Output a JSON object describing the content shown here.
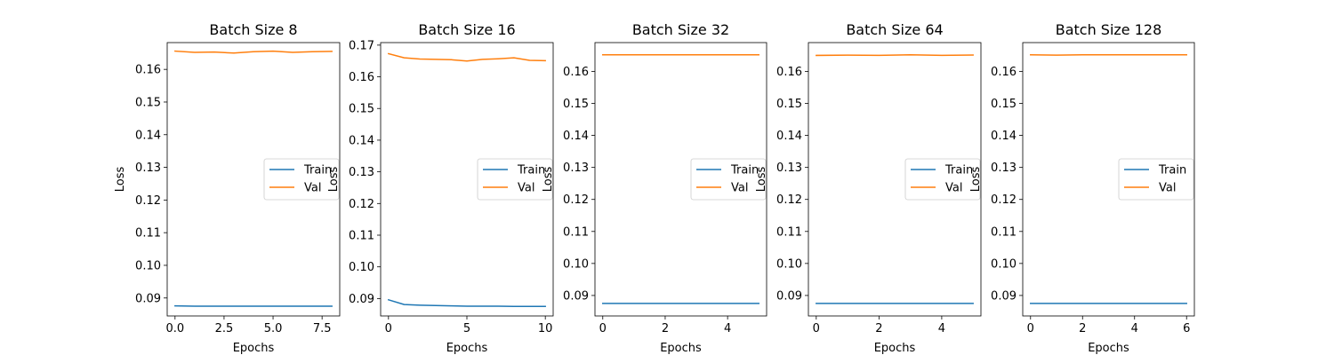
{
  "chart_data": [
    {
      "type": "line",
      "title": "Batch Size 8",
      "xlabel": "Epochs",
      "ylabel": "Loss",
      "xlim": [
        -0.4,
        8.4
      ],
      "ylim": [
        0.0845,
        0.1682
      ],
      "xticks": [
        0,
        2.5,
        5,
        7.5
      ],
      "xtick_labels": [
        "0.0",
        "2.5",
        "5.0",
        "7.5"
      ],
      "yticks": [
        0.09,
        0.1,
        0.11,
        0.12,
        0.13,
        0.14,
        0.15,
        0.16
      ],
      "ytick_labels": [
        "0.09",
        "0.10",
        "0.11",
        "0.12",
        "0.13",
        "0.14",
        "0.15",
        "0.16"
      ],
      "legend": "center-right",
      "series": [
        {
          "name": "Train",
          "color": "#1f77b4",
          "x": [
            0,
            1,
            2,
            3,
            4,
            5,
            6,
            7,
            8
          ],
          "values": [
            0.0876,
            0.0875,
            0.0875,
            0.0875,
            0.0875,
            0.0875,
            0.0875,
            0.0875,
            0.0875
          ]
        },
        {
          "name": "Val",
          "color": "#ff7f0e",
          "x": [
            0,
            1,
            2,
            3,
            4,
            5,
            6,
            7,
            8
          ],
          "values": [
            0.1656,
            0.1652,
            0.1653,
            0.165,
            0.1654,
            0.1656,
            0.1652,
            0.1654,
            0.1655
          ]
        }
      ]
    },
    {
      "type": "line",
      "title": "Batch Size 16",
      "xlabel": "Epochs",
      "ylabel": "Loss",
      "xlim": [
        -0.5,
        10.5
      ],
      "ylim": [
        0.0845,
        0.1708
      ],
      "xticks": [
        0,
        5,
        10
      ],
      "xtick_labels": [
        "0",
        "5",
        "10"
      ],
      "yticks": [
        0.09,
        0.1,
        0.11,
        0.12,
        0.13,
        0.14,
        0.15,
        0.16,
        0.17
      ],
      "ytick_labels": [
        "0.09",
        "0.10",
        "0.11",
        "0.12",
        "0.13",
        "0.14",
        "0.15",
        "0.16",
        "0.17"
      ],
      "legend": "center-right",
      "series": [
        {
          "name": "Train",
          "color": "#1f77b4",
          "x": [
            0,
            1,
            2,
            3,
            4,
            5,
            6,
            7,
            8,
            9,
            10
          ],
          "values": [
            0.0896,
            0.0881,
            0.0879,
            0.0878,
            0.0877,
            0.0876,
            0.0876,
            0.0876,
            0.0875,
            0.0875,
            0.0875
          ]
        },
        {
          "name": "Val",
          "color": "#ff7f0e",
          "x": [
            0,
            1,
            2,
            3,
            4,
            5,
            6,
            7,
            8,
            9,
            10
          ],
          "values": [
            0.1673,
            0.166,
            0.1656,
            0.1655,
            0.1654,
            0.165,
            0.1655,
            0.1657,
            0.166,
            0.1652,
            0.1651
          ]
        }
      ]
    },
    {
      "type": "line",
      "title": "Batch Size 32",
      "xlabel": "Epochs",
      "ylabel": "Loss",
      "xlim": [
        -0.25,
        5.25
      ],
      "ylim": [
        0.0836,
        0.169
      ],
      "xticks": [
        0,
        2,
        4
      ],
      "xtick_labels": [
        "0",
        "2",
        "4"
      ],
      "yticks": [
        0.09,
        0.1,
        0.11,
        0.12,
        0.13,
        0.14,
        0.15,
        0.16
      ],
      "ytick_labels": [
        "0.09",
        "0.10",
        "0.11",
        "0.12",
        "0.13",
        "0.14",
        "0.15",
        "0.16"
      ],
      "legend": "center-right",
      "series": [
        {
          "name": "Train",
          "color": "#1f77b4",
          "x": [
            0,
            1,
            2,
            3,
            4,
            5
          ],
          "values": [
            0.0875,
            0.0875,
            0.0875,
            0.0875,
            0.0875,
            0.0875
          ]
        },
        {
          "name": "Val",
          "color": "#ff7f0e",
          "x": [
            0,
            1,
            2,
            3,
            4,
            5
          ],
          "values": [
            0.1652,
            0.1652,
            0.1652,
            0.1652,
            0.1652,
            0.1652
          ]
        }
      ]
    },
    {
      "type": "line",
      "title": "Batch Size 64",
      "xlabel": "Epochs",
      "ylabel": "Loss",
      "xlim": [
        -0.25,
        5.25
      ],
      "ylim": [
        0.0836,
        0.169
      ],
      "xticks": [
        0,
        2,
        4
      ],
      "xtick_labels": [
        "0",
        "2",
        "4"
      ],
      "yticks": [
        0.09,
        0.1,
        0.11,
        0.12,
        0.13,
        0.14,
        0.15,
        0.16
      ],
      "ytick_labels": [
        "0.09",
        "0.10",
        "0.11",
        "0.12",
        "0.13",
        "0.14",
        "0.15",
        "0.16"
      ],
      "legend": "center-right",
      "series": [
        {
          "name": "Train",
          "color": "#1f77b4",
          "x": [
            0,
            1,
            2,
            3,
            4,
            5
          ],
          "values": [
            0.0875,
            0.0875,
            0.0875,
            0.0875,
            0.0875,
            0.0875
          ]
        },
        {
          "name": "Val",
          "color": "#ff7f0e",
          "x": [
            0,
            1,
            2,
            3,
            4,
            5
          ],
          "values": [
            0.165,
            0.1651,
            0.165,
            0.1652,
            0.165,
            0.1651
          ]
        }
      ]
    },
    {
      "type": "line",
      "title": "Batch Size 128",
      "xlabel": "Epochs",
      "ylabel": "Loss",
      "xlim": [
        -0.3,
        6.3
      ],
      "ylim": [
        0.0836,
        0.169
      ],
      "xticks": [
        0,
        2,
        4,
        6
      ],
      "xtick_labels": [
        "0",
        "2",
        "4",
        "6"
      ],
      "yticks": [
        0.09,
        0.1,
        0.11,
        0.12,
        0.13,
        0.14,
        0.15,
        0.16
      ],
      "ytick_labels": [
        "0.09",
        "0.10",
        "0.11",
        "0.12",
        "0.13",
        "0.14",
        "0.15",
        "0.16"
      ],
      "legend": "center-right",
      "series": [
        {
          "name": "Train",
          "color": "#1f77b4",
          "x": [
            0,
            1,
            2,
            3,
            4,
            5,
            6
          ],
          "values": [
            0.0875,
            0.0875,
            0.0875,
            0.0875,
            0.0875,
            0.0875,
            0.0875
          ]
        },
        {
          "name": "Val",
          "color": "#ff7f0e",
          "x": [
            0,
            1,
            2,
            3,
            4,
            5,
            6
          ],
          "values": [
            0.1652,
            0.1651,
            0.1652,
            0.1652,
            0.1652,
            0.1652,
            0.1652
          ]
        }
      ]
    }
  ]
}
